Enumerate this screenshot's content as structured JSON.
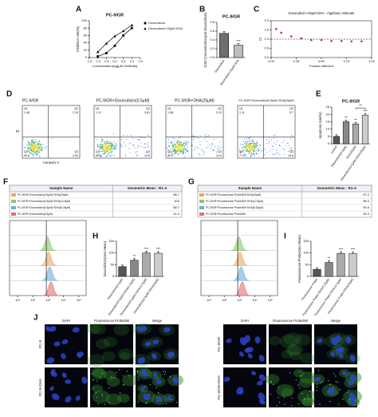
{
  "panel_a": {
    "letter": "A",
    "chart": {
      "type": "line",
      "title": "PC-9/GR",
      "x_label": "Concentration(log[μM Gefitinib])",
      "y_label": "Inhibition rate(%)",
      "xlim": [
        -1.5,
        1.5
      ],
      "xticks": [
        -1.5,
        {
          "value": -1,
          "label": "-1.0"
        },
        -0.5,
        {
          "value": 0,
          "label": "0.0"
        },
        0.5,
        {
          "value": 1,
          "label": "1.0"
        },
        1.5
      ],
      "ylim": [
        0,
        100
      ],
      "yticks": [
        0,
        20,
        40,
        60,
        80,
        100
      ],
      "x": [
        -1,
        -0.5,
        0,
        0.5,
        1
      ],
      "series": [
        {
          "name": "Doxorubicin",
          "color": "#000000",
          "marker": "square",
          "values": [
            3,
            12,
            32,
            60,
            80
          ]
        },
        {
          "name": "Doxorubicin+25μM DHA",
          "color": "#000000",
          "marker": "triangle",
          "values": [
            15,
            38,
            58,
            72,
            88
          ]
        }
      ]
    }
  },
  "panel_b": {
    "letter": "B",
    "chart": {
      "type": "bar",
      "title": "PC-9/GR",
      "y_label": "IC50 (Concentration/μM Doxorubicin)",
      "categories": [
        "Doxorubicin",
        "Doxorubicin+25μM DHA"
      ],
      "values": [
        0.55,
        0.28
      ],
      "colors": [
        "#6e6e6e",
        "#bdbdbd"
      ],
      "ylim": [
        0,
        0.8
      ],
      "yticks": [
        {
          "value": 0,
          "label": "0.0"
        },
        0.2,
        0.4,
        0.6,
        0.8
      ],
      "annotations": [
        null,
        "***"
      ]
    }
  },
  "panel_c": {
    "letter": "C",
    "chart": {
      "type": "scatter",
      "title": "Doxorubicin+25μM DHA - Algebraic estimate",
      "x_label": "Fraction Affected",
      "y_label": "CI",
      "xlim": [
        0,
        1
      ],
      "xticks": [
        {
          "value": 0,
          "label": "0.00"
        },
        0.25,
        {
          "value": 0.5,
          "label": "0.50"
        },
        0.75,
        {
          "value": 1,
          "label": "1.00"
        }
      ],
      "ylim": [
        0,
        2
      ],
      "yticks": [
        {
          "value": 0,
          "label": "0.0"
        },
        0.5,
        {
          "value": 1,
          "label": "1.0"
        },
        1.5,
        {
          "value": 2,
          "label": "2.0"
        }
      ],
      "x": [
        0.05,
        0.1,
        0.2,
        0.3,
        0.4,
        0.5,
        0.6,
        0.7,
        0.8,
        0.9
      ],
      "values": [
        1.55,
        1.35,
        1.15,
        1.05,
        0.95,
        0.95,
        0.9,
        0.9,
        0.88,
        0.88
      ],
      "color": "#c0392b",
      "reference_line": 1
    }
  },
  "panel_d": {
    "letter": "D",
    "x_label": "Annexin V",
    "y_label": "PI",
    "quadrant_labels": [
      "Q1",
      "Q2",
      "Q3",
      "Q4"
    ],
    "plots": [
      {
        "title": "PC-9/GR",
        "values": [
          1.46,
          2.15,
          2.82,
          93.6
        ]
      },
      {
        "title": "PC-9/GR+Doxorubicin(0.5μM)",
        "values": [
          1.12,
          3.61,
          14.5,
          80.8
        ]
      },
      {
        "title": "PC-9/GR+DHA(25μM)",
        "values": [
          1.58,
          3.12,
          14.9,
          80.4
        ]
      },
      {
        "title": "PC-9/GR+Doxorubicin(0.5μM)+DHA(25μM)",
        "values": [
          1.11,
          5.7,
          15.6,
          77.6
        ]
      }
    ]
  },
  "panel_e": {
    "letter": "E",
    "chart": {
      "type": "bar",
      "title": "PC-9/GR",
      "y_label": "Apoptosis rate(%)",
      "categories": [
        "control",
        "Doxorubicin(0.5μM)",
        "DHA(25μM)",
        "Doxorubicin(0.5μM)+DHA(25μM)"
      ],
      "values": [
        5,
        15,
        13.5,
        19.5
      ],
      "colors": [
        "#555555",
        "#888888",
        "#aaaaaa",
        "#cccccc"
      ],
      "ylim": [
        0,
        25
      ],
      "yticks": [
        0,
        5,
        10,
        15,
        20,
        25
      ],
      "annotations": [
        null,
        "**",
        "**",
        "***"
      ],
      "bracket_label": "**"
    }
  },
  "panel_f": {
    "letter": "F",
    "table": {
      "headers": [
        "Sample Name",
        "Geometric Mean : R1-A"
      ],
      "rows": [
        [
          "PC-9/GR+Doxorubicin(0.5μM)+DHA(25μM)",
          98.7
        ],
        [
          "PC-9/GR+Doxorubicin(0.5μM)+DHA(12.5μM)",
          100
        ],
        [
          "PC-9/GR+Doxorubicin(0.5μM)+DHA(6.25μM)",
          68.7
        ],
        [
          "PC-9/GR+Doxorubicin(0.5μM)",
          41.4
        ]
      ],
      "row_colors": [
        "#e8a860",
        "#8cc56b",
        "#6aaed6",
        "#e07070"
      ]
    },
    "hist_xlim": [
      3,
      300000
    ],
    "hist_xticks": [
      {
        "value": 10,
        "label": "10¹"
      },
      {
        "value": 100,
        "label": "10²"
      },
      {
        "value": 1000,
        "label": "10³"
      },
      {
        "value": 10000,
        "label": "10⁴"
      },
      {
        "value": 100000,
        "label": "10⁵"
      }
    ]
  },
  "panel_g": {
    "letter": "G",
    "table": {
      "headers": [
        "Sample Name",
        "Geometric Mean : R1-A"
      ],
      "rows": [
        [
          "PC-9/GR+Fluorescence ProbeDM+DHA(25μM)",
          97.2
        ],
        [
          "PC-9/GR+Fluorescence ProbeDM+DHA(12.5μM)",
          98.3
        ],
        [
          "PC-9/GR+Fluorescence ProbeDM+DHA(6.25μM)",
          59.6
        ],
        [
          "PC-9/GR+Fluorescence ProbeDM",
          30.2
        ]
      ],
      "row_colors": [
        "#e8a860",
        "#8cc56b",
        "#6aaed6",
        "#e07070"
      ]
    },
    "hist_xlim": [
      3,
      300000
    ],
    "hist_xticks": [
      {
        "value": 10,
        "label": "10¹"
      },
      {
        "value": 100,
        "label": "10²"
      },
      {
        "value": 1000,
        "label": "10³"
      },
      {
        "value": 10000,
        "label": "10⁴"
      },
      {
        "value": 100000,
        "label": "10⁵"
      }
    ]
  },
  "panel_h": {
    "letter": "H",
    "chart": {
      "type": "bar",
      "y_label": "Doxorubicin(Geo.Mean)",
      "categories": [
        "Doxorubicin(0.5μM)",
        "Doxorubicin(0.5μM)+DHA(6.25μM)",
        "Doxorubicin(0.5μM)+DHA(12.5μM)",
        "Doxorubicin(0.5μM)+DHA(25μM)"
      ],
      "values": [
        41.4,
        68.7,
        100,
        98.7
      ],
      "colors": [
        "#555555",
        "#888888",
        "#aaaaaa",
        "#cccccc"
      ],
      "ylim": [
        0,
        150
      ],
      "yticks": [
        0,
        50,
        100,
        150
      ],
      "annotations": [
        null,
        "**",
        "***",
        "***"
      ]
    }
  },
  "panel_i": {
    "letter": "I",
    "chart": {
      "type": "bar",
      "y_label": "Fluorescence Probe(Geo.Mean)",
      "categories": [
        "Fluorescence Probe",
        "Fluorescence Probe+DHA(6.25μM)",
        "Fluorescence Probe+DHA(12.5μM)",
        "Fluorescence Probe+DHA(25μM)"
      ],
      "values": [
        30.2,
        59.6,
        98.3,
        97.2
      ],
      "colors": [
        "#555555",
        "#888888",
        "#aaaaaa",
        "#cccccc"
      ],
      "ylim": [
        0,
        150
      ],
      "yticks": [
        0,
        50,
        100,
        150
      ],
      "annotations": [
        null,
        "**",
        "***",
        "***"
      ]
    }
  },
  "panel_j": {
    "letter": "J",
    "columns": [
      "DAPI",
      "Fluorescence ProbeDM",
      "Merge"
    ],
    "groups": [
      {
        "rows": [
          "PC-9",
          "PC-9+DHA"
        ]
      },
      {
        "rows": [
          "PC-9/GR",
          "PC-9/GR+DHA"
        ]
      }
    ]
  }
}
